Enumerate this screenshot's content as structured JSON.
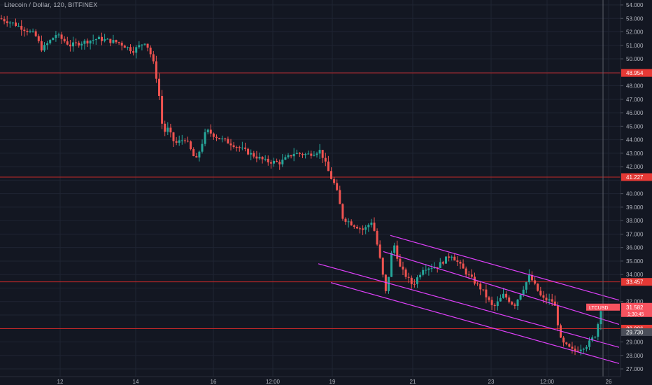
{
  "chart_data": {
    "type": "candlestick",
    "title": "Litecoin / Dollar, 120, BITFINEX",
    "ylim": [
      26.5,
      54.5
    ],
    "grid": true,
    "colors": {
      "background": "#131722",
      "grid": "#1f2433",
      "up": "#26a69a",
      "down": "#ef5350",
      "level_line": "#c62828",
      "level_label": "#e53935",
      "channel": "#e040fb",
      "axis_text": "#b2b5be",
      "current_price": "#f7525f"
    },
    "y_ticks": [
      "54.000",
      "53.000",
      "52.000",
      "51.000",
      "50.000",
      "48.000",
      "47.000",
      "46.000",
      "45.000",
      "44.000",
      "43.000",
      "42.000",
      "40.000",
      "39.000",
      "38.000",
      "37.000",
      "36.000",
      "35.000",
      "34.000",
      "32.000",
      "31.000",
      "29.000",
      "28.000",
      "27.000"
    ],
    "x_ticks": [
      {
        "label": "12",
        "x": 86
      },
      {
        "label": "14",
        "x": 194
      },
      {
        "label": "16",
        "x": 305
      },
      {
        "label": "12:00",
        "x": 390
      },
      {
        "label": "19",
        "x": 475
      },
      {
        "label": "21",
        "x": 590
      },
      {
        "label": "23",
        "x": 702
      },
      {
        "label": "12:00",
        "x": 782
      },
      {
        "label": "26",
        "x": 870
      }
    ],
    "horizontal_levels": [
      {
        "price": 48.954,
        "label": "48.954"
      },
      {
        "price": 41.227,
        "label": "41.227"
      },
      {
        "price": 33.457,
        "label": "33.457"
      },
      {
        "price": 29.986,
        "label": "29.986"
      }
    ],
    "current_price": {
      "value": 31.582,
      "label": "31.582",
      "symbol": "LTCUSD",
      "countdown": "1:30:45",
      "line_x": 862
    },
    "gray_price_label": {
      "value": 29.73,
      "label": "29.730"
    },
    "channel_lines": [
      {
        "x1": 558,
        "p1": 36.9,
        "x2": 885,
        "p2": 32.1
      },
      {
        "x1": 548,
        "p1": 35.7,
        "x2": 885,
        "p2": 30.3
      },
      {
        "x1": 455,
        "p1": 34.8,
        "x2": 885,
        "p2": 28.6
      },
      {
        "x1": 473,
        "p1": 33.4,
        "x2": 885,
        "p2": 27.4
      }
    ],
    "anchors": [
      [
        0,
        53.0
      ],
      [
        20,
        52.6
      ],
      [
        50,
        51.8
      ],
      [
        60,
        50.7
      ],
      [
        80,
        51.8
      ],
      [
        100,
        51.0
      ],
      [
        140,
        51.5
      ],
      [
        170,
        51.2
      ],
      [
        190,
        50.6
      ],
      [
        208,
        51.3
      ],
      [
        218,
        50.0
      ],
      [
        226,
        48.0
      ],
      [
        233,
        44.5
      ],
      [
        240,
        44.8
      ],
      [
        250,
        43.7
      ],
      [
        265,
        44.1
      ],
      [
        280,
        42.4
      ],
      [
        295,
        44.7
      ],
      [
        310,
        44.2
      ],
      [
        335,
        43.6
      ],
      [
        360,
        42.9
      ],
      [
        380,
        42.4
      ],
      [
        400,
        42.3
      ],
      [
        420,
        43.0
      ],
      [
        440,
        42.9
      ],
      [
        458,
        43.2
      ],
      [
        472,
        41.3
      ],
      [
        480,
        40.5
      ],
      [
        490,
        38.2
      ],
      [
        505,
        37.7
      ],
      [
        520,
        37.3
      ],
      [
        532,
        38.0
      ],
      [
        542,
        35.5
      ],
      [
        552,
        32.5
      ],
      [
        562,
        36.5
      ],
      [
        572,
        34.5
      ],
      [
        590,
        33.2
      ],
      [
        605,
        34.5
      ],
      [
        625,
        34.6
      ],
      [
        645,
        35.5
      ],
      [
        665,
        34.2
      ],
      [
        690,
        32.8
      ],
      [
        705,
        31.5
      ],
      [
        720,
        32.5
      ],
      [
        735,
        31.7
      ],
      [
        757,
        33.9
      ],
      [
        775,
        32.2
      ],
      [
        792,
        32.0
      ],
      [
        802,
        29.0
      ],
      [
        820,
        28.3
      ],
      [
        840,
        28.8
      ],
      [
        852,
        29.6
      ],
      [
        862,
        32.3
      ]
    ],
    "candle_spacing": 4.1,
    "candle_seed": 7
  }
}
